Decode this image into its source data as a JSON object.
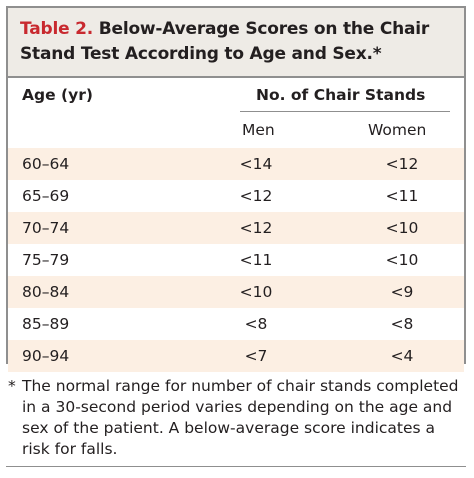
{
  "title": {
    "label": "Table 2.",
    "text": " Below-Average Scores on the Chair Stand Test According to Age and Sex.*"
  },
  "columns": {
    "age": "Age (yr)",
    "stands": "No. of Chair Stands",
    "men": "Men",
    "women": "Women"
  },
  "rows": [
    {
      "age": "60–64",
      "men": "<14",
      "women": "<12"
    },
    {
      "age": "65–69",
      "men": "<12",
      "women": "<11"
    },
    {
      "age": "70–74",
      "men": "<12",
      "women": "<10"
    },
    {
      "age": "75–79",
      "men": "<11",
      "women": "<10"
    },
    {
      "age": "80–84",
      "men": "<10",
      "women": "<9"
    },
    {
      "age": "85–89",
      "men": "<8",
      "women": "<8"
    },
    {
      "age": "90–94",
      "men": "<7",
      "women": "<4"
    }
  ],
  "footnote": {
    "marker": "*",
    "text": "The normal range for number of chair stands completed in a 30-second period varies depending on the age and sex of the patient. A below-average score indicates a risk for falls."
  },
  "colors": {
    "title_label": "#c8292f",
    "title_band": "#eeebe6",
    "shaded_row": "#fcefe3",
    "border": "#8f8f8f"
  }
}
